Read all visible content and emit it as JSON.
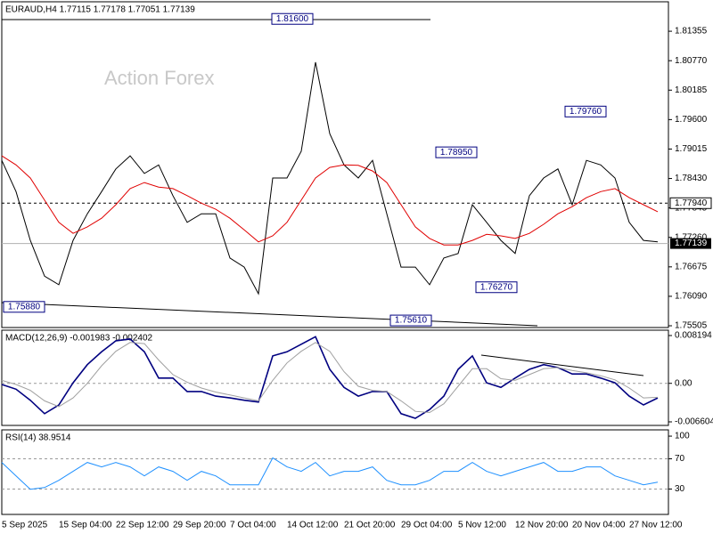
{
  "chart_data": [
    {
      "type": "line",
      "title": "EURAUD,H4  1.77115 1.77178 1.77051 1.77139",
      "watermark": "Action Forex",
      "categories": [
        "5 Sep 2025",
        null,
        null,
        null,
        "15 Sep 04:00",
        null,
        null,
        null,
        "22 Sep 12:00",
        null,
        null,
        null,
        "29 Sep 20:00",
        null,
        null,
        null,
        "7 Oct 04:00",
        null,
        null,
        null,
        "14 Oct 12:00",
        null,
        null,
        null,
        "21 Oct 20:00",
        null,
        null,
        null,
        "29 Oct 04:00",
        null,
        null,
        null,
        "5 Nov 12:00",
        null,
        null,
        null,
        "12 Nov 20:00",
        null,
        null,
        null,
        "20 Nov 04:00",
        null,
        null,
        null,
        "27 Nov 12:00",
        null,
        null
      ],
      "series": [
        {
          "color": "#000000",
          "values": [
            1.7879,
            1.7817,
            1.772,
            1.7649,
            1.7632,
            1.772,
            1.7773,
            1.7817,
            1.7862,
            1.7888,
            1.7853,
            1.787,
            1.7809,
            1.7756,
            1.7773,
            1.7773,
            1.7685,
            1.7667,
            1.7614,
            1.7844,
            1.7844,
            1.7897,
            1.8074,
            1.7932,
            1.787,
            1.7844,
            1.7879,
            1.7773,
            1.7667,
            1.7667,
            1.7632,
            1.7685,
            1.7694,
            1.7791,
            1.7756,
            1.772,
            1.7694,
            1.7809,
            1.7844,
            1.7862,
            1.7791,
            1.7879,
            1.787,
            1.7844,
            1.7756,
            1.772,
            1.7717
          ]
        },
        {
          "color": "#e00000",
          "values": [
            1.7888,
            1.787,
            1.7844,
            1.78,
            1.7756,
            1.7734,
            1.7747,
            1.7764,
            1.7791,
            1.7823,
            1.7835,
            1.7826,
            1.7823,
            1.7809,
            1.7794,
            1.7782,
            1.7764,
            1.7741,
            1.7717,
            1.7729,
            1.7756,
            1.78,
            1.7844,
            1.7865,
            1.787,
            1.7869,
            1.7858,
            1.7835,
            1.7791,
            1.7747,
            1.7724,
            1.7711,
            1.7711,
            1.772,
            1.7732,
            1.7729,
            1.7724,
            1.7734,
            1.7752,
            1.7773,
            1.7787,
            1.7805,
            1.7817,
            1.7823,
            1.7805,
            1.7791,
            1.7777
          ]
        }
      ],
      "ylim": [
        1.7547,
        1.8194
      ],
      "yticks": [
        1.81355,
        {
          "value": 1.8077,
          "label": "1.80770"
        },
        1.80185,
        {
          "value": 1.796,
          "label": "1.79600"
        },
        1.79015,
        {
          "value": 1.7843,
          "label": "1.78430"
        },
        1.77845,
        {
          "value": 1.7726,
          "label": "1.77260"
        },
        1.76675,
        {
          "value": 1.7609,
          "label": "1.76090"
        },
        1.75505
      ],
      "annotations": [
        {
          "value": 1.816,
          "label": "1.81600"
        },
        {
          "value": 1.7976,
          "label": "1.79760"
        },
        {
          "value": 1.7895,
          "label": "1.78950"
        },
        {
          "value": 1.7627,
          "label": "1.76270"
        },
        {
          "value": 1.7588,
          "label": "1.75880"
        },
        {
          "value": 1.7561,
          "label": "1.75610"
        }
      ],
      "level_line": {
        "value": 1.7794,
        "label": "1.77940"
      },
      "current_price": {
        "value": 1.77139,
        "label": "1.77139"
      }
    },
    {
      "type": "line",
      "title": "MACD(12,26,9) -0.001983 -0.002402",
      "series": [
        {
          "color": "#000080",
          "values": [
            -0.0002,
            -0.001,
            -0.0029,
            -0.0052,
            -0.0037,
            0.0001,
            0.0032,
            0.0054,
            0.0073,
            0.0076,
            0.0054,
            0.0009,
            0.0009,
            -0.0014,
            -0.0014,
            -0.0022,
            -0.0025,
            -0.0029,
            -0.0032,
            0.0047,
            0.0054,
            0.0067,
            0.008,
            0.0024,
            -0.0007,
            -0.0022,
            -0.0014,
            -0.0014,
            -0.0052,
            -0.006,
            -0.0045,
            -0.0022,
            0.0024,
            0.0047,
            0.0001,
            -0.0007,
            0.0009,
            0.0024,
            0.0032,
            0.0027,
            0.0016,
            0.0016,
            0.0009,
            0.0001,
            -0.0022,
            -0.0037,
            -0.0025
          ]
        },
        {
          "color": "#a0a0a0",
          "values": [
            0.0005,
            -0.0002,
            -0.0012,
            -0.003,
            -0.004,
            -0.0025,
            0.0,
            0.003,
            0.0055,
            0.007,
            0.0068,
            0.004,
            0.0015,
            0.0002,
            -0.0008,
            -0.0015,
            -0.002,
            -0.0025,
            -0.003,
            0.0005,
            0.0035,
            0.0055,
            0.007,
            0.0055,
            0.002,
            -0.0005,
            -0.0012,
            -0.0014,
            -0.003,
            -0.0048,
            -0.005,
            -0.0035,
            -0.0005,
            0.0025,
            0.0025,
            0.0008,
            0.0005,
            0.0015,
            0.0025,
            0.0027,
            0.0022,
            0.0018,
            0.0013,
            0.0006,
            -0.0008,
            -0.0025,
            -0.0024
          ]
        }
      ],
      "ylim": [
        -0.007214,
        0.009109
      ],
      "yticks": [
        0.008194,
        {
          "value": 0,
          "label": "0.00"
        },
        -0.006604
      ],
      "levels": [
        0
      ]
    },
    {
      "type": "line",
      "title": "RSI(14) 38.9514",
      "series": [
        {
          "color": "#1e90ff",
          "values": [
            65.2,
            47.4,
            29.7,
            32.0,
            41.5,
            53.4,
            65.2,
            59.3,
            65.2,
            59.3,
            47.4,
            59.3,
            53.4,
            41.5,
            53.4,
            47.4,
            35.6,
            35.6,
            35.6,
            71.2,
            59.3,
            53.4,
            65.2,
            47.4,
            53.4,
            53.4,
            59.3,
            41.5,
            35.6,
            35.6,
            41.5,
            53.4,
            53.4,
            65.2,
            53.4,
            47.4,
            53.4,
            59.3,
            65.2,
            53.4,
            53.4,
            59.3,
            59.3,
            47.4,
            41.5,
            35.6,
            39.0
          ]
        }
      ],
      "ylim": [
        -3.6,
        108.3
      ],
      "yticks": [
        100,
        70,
        30
      ],
      "levels": [
        70,
        30
      ]
    }
  ]
}
